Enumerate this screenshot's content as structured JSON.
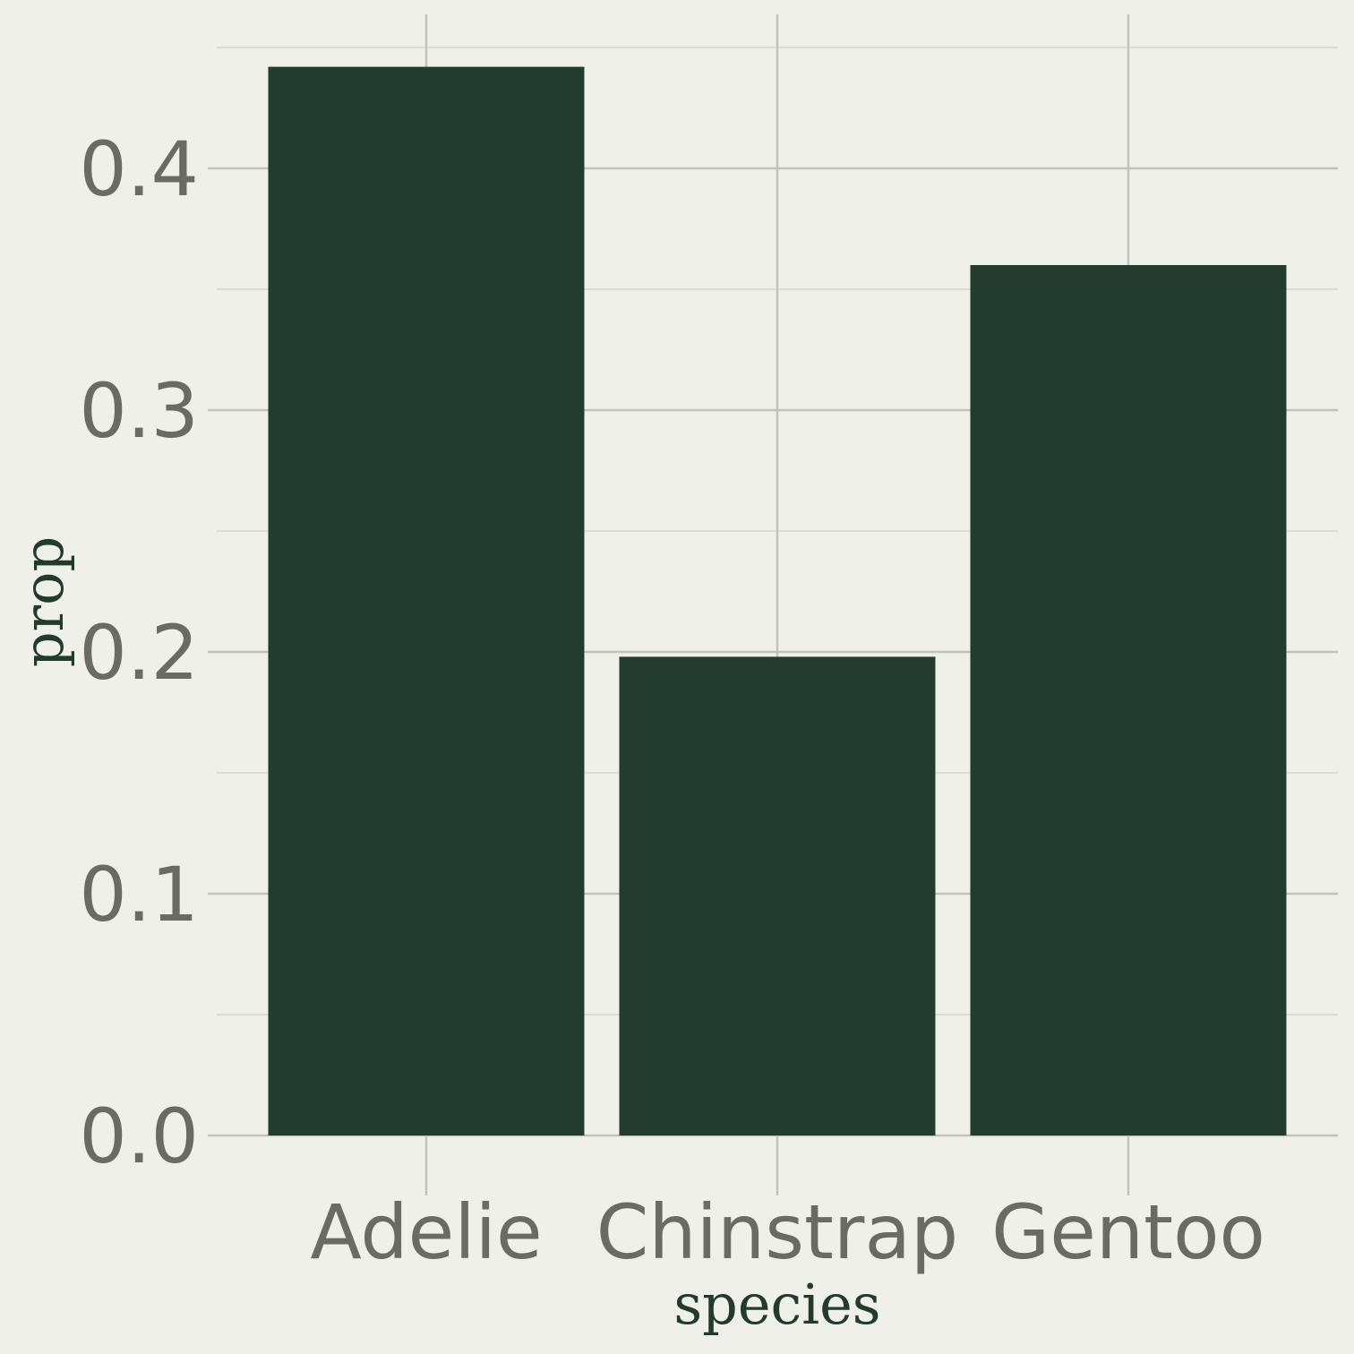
{
  "chart_data": {
    "type": "bar",
    "categories": [
      "Adelie",
      "Chinstrap",
      "Gentoo"
    ],
    "values": [
      0.442,
      0.198,
      0.36
    ],
    "title": "",
    "xlabel": "species",
    "ylabel": "prop",
    "ylim": [
      0,
      0.45
    ],
    "yticks": [
      0,
      0.1,
      0.2,
      0.3,
      0.4
    ],
    "ytick_labels": [
      "0.0",
      "0.1",
      "0.2",
      "0.3",
      "0.4"
    ],
    "grid": true,
    "legend": "none"
  },
  "colors": {
    "background": "#f0f0eb",
    "bar": "#243b30",
    "grid_major": "#c2c2bd",
    "grid_minor": "#dcdcd6",
    "tick_text": "#6b6b66",
    "axis_title": "#233a2f"
  }
}
